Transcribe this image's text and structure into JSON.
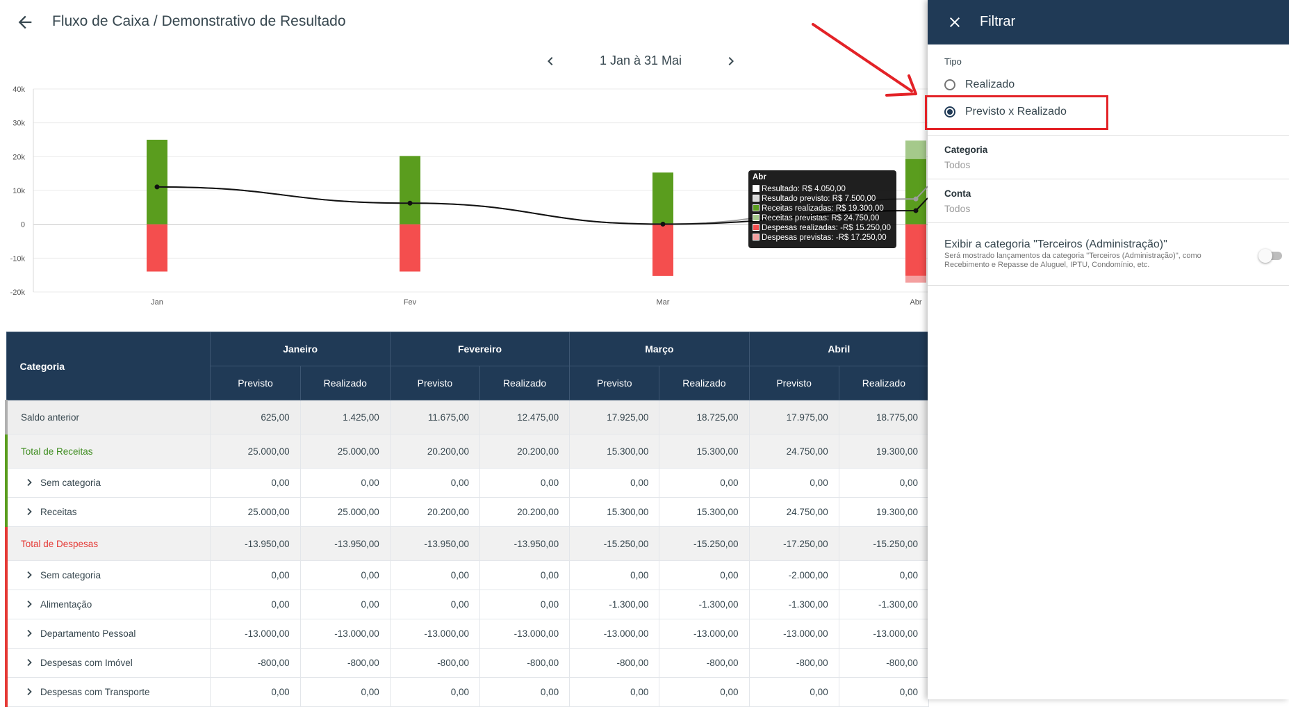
{
  "header": {
    "title": "Fluxo de Caixa / Demonstrativo de Resultado"
  },
  "period": {
    "label": "1 Jan à 31 Mai"
  },
  "colors": {
    "receitas": "#5a9d1e",
    "receitas_previstas": "#a5c98b",
    "despesas": "#f44e4e",
    "despesas_previstas": "#f4a0a0",
    "header_bg": "#203a56",
    "highlight": "#e32227"
  },
  "chart_data": {
    "type": "bar",
    "categories": [
      "Jan",
      "Fev",
      "Mar",
      "Abr"
    ],
    "y_ticks": [
      "40k",
      "30k",
      "20k",
      "10k",
      "0",
      "-10k",
      "-20k"
    ],
    "ylim": [
      -20000,
      40000
    ],
    "series": [
      {
        "name": "Receitas realizadas",
        "values": [
          25000,
          20200,
          15300,
          19300
        ]
      },
      {
        "name": "Receitas previstas",
        "values": [
          25000,
          20200,
          15300,
          24750
        ]
      },
      {
        "name": "Despesas realizadas",
        "values": [
          -13950,
          -13950,
          -15250,
          -15250
        ]
      },
      {
        "name": "Despesas previstas",
        "values": [
          -13950,
          -13950,
          -15250,
          -17250
        ]
      },
      {
        "name": "Resultado",
        "values": [
          11050,
          6250,
          50,
          4050
        ]
      },
      {
        "name": "Resultado previsto",
        "values": [
          11050,
          6250,
          50,
          7500
        ]
      }
    ],
    "tooltip": {
      "title": "Abr",
      "rows": [
        "Resultado: R$ 4.050,00",
        "Resultado previsto: R$ 7.500,00",
        "Receitas realizadas: R$ 19.300,00",
        "Receitas previstas: R$ 24.750,00",
        "Despesas realizadas: -R$ 15.250,00",
        "Despesas previstas: -R$ 17.250,00"
      ],
      "swatches": [
        "#ffffff",
        "#d9d9d9",
        "#5a9d1e",
        "#a5c98b",
        "#f44e4e",
        "#f4a0a0"
      ]
    }
  },
  "table": {
    "category_header": "Categoria",
    "months": [
      "Janeiro",
      "Fevereiro",
      "Março",
      "Abril"
    ],
    "sub_headers": [
      "Previsto",
      "Realizado"
    ],
    "rows": [
      {
        "label": "Saldo anterior",
        "values": [
          "625,00",
          "1.425,00",
          "11.675,00",
          "12.475,00",
          "17.925,00",
          "18.725,00",
          "17.975,00",
          "18.775,00"
        ]
      },
      {
        "label": "Total de Receitas",
        "values": [
          "25.000,00",
          "25.000,00",
          "20.200,00",
          "20.200,00",
          "15.300,00",
          "15.300,00",
          "24.750,00",
          "19.300,00"
        ]
      },
      {
        "label": "Sem categoria",
        "values": [
          "0,00",
          "0,00",
          "0,00",
          "0,00",
          "0,00",
          "0,00",
          "0,00",
          "0,00"
        ]
      },
      {
        "label": "Receitas",
        "values": [
          "25.000,00",
          "25.000,00",
          "20.200,00",
          "20.200,00",
          "15.300,00",
          "15.300,00",
          "24.750,00",
          "19.300,00"
        ]
      },
      {
        "label": "Total de Despesas",
        "values": [
          "-13.950,00",
          "-13.950,00",
          "-13.950,00",
          "-13.950,00",
          "-15.250,00",
          "-15.250,00",
          "-17.250,00",
          "-15.250,00"
        ]
      },
      {
        "label": "Sem categoria",
        "values": [
          "0,00",
          "0,00",
          "0,00",
          "0,00",
          "0,00",
          "0,00",
          "-2.000,00",
          "0,00"
        ]
      },
      {
        "label": "Alimentação",
        "values": [
          "0,00",
          "0,00",
          "0,00",
          "0,00",
          "-1.300,00",
          "-1.300,00",
          "-1.300,00",
          "-1.300,00"
        ]
      },
      {
        "label": "Departamento Pessoal",
        "values": [
          "-13.000,00",
          "-13.000,00",
          "-13.000,00",
          "-13.000,00",
          "-13.000,00",
          "-13.000,00",
          "-13.000,00",
          "-13.000,00"
        ]
      },
      {
        "label": "Despesas com Imóvel",
        "values": [
          "-800,00",
          "-800,00",
          "-800,00",
          "-800,00",
          "-800,00",
          "-800,00",
          "-800,00",
          "-800,00"
        ]
      },
      {
        "label": "Despesas com Transporte",
        "values": [
          "0,00",
          "0,00",
          "0,00",
          "0,00",
          "0,00",
          "0,00",
          "0,00",
          "0,00"
        ]
      }
    ]
  },
  "filter_panel": {
    "title": "Filtrar",
    "tipo_label": "Tipo",
    "tipo_options": [
      "Realizado",
      "Previsto x Realizado"
    ],
    "tipo_selected": "Previsto x Realizado",
    "categoria": {
      "label": "Categoria",
      "value": "Todos"
    },
    "conta": {
      "label": "Conta",
      "value": "Todos"
    },
    "terceiros": {
      "title": "Exibir a categoria \"Terceiros (Administração)\"",
      "description": "Será mostrado lançamentos da categoria \"Terceiros (Administração)\", como Recebimento e Repasse de Aluguel, IPTU, Condomínio, etc.",
      "enabled": false
    }
  }
}
